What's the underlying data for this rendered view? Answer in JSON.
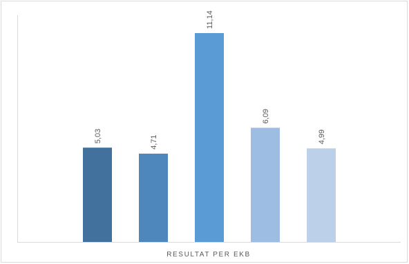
{
  "chart_data": {
    "type": "bar",
    "title": "",
    "xlabel": "RESULTAT PER EKB",
    "ylabel": "",
    "categories": [
      "",
      "",
      "",
      "",
      ""
    ],
    "values": [
      5.03,
      4.71,
      11.14,
      6.09,
      4.99
    ],
    "data_labels": [
      "5,03",
      "4,71",
      "11,14",
      "6,09",
      "4,99"
    ],
    "bar_colors": [
      "#41719c",
      "#4d87bb",
      "#5b9bd5",
      "#9dbde2",
      "#bdd0ea"
    ],
    "ylim": [
      0,
      11.14
    ],
    "grid": false,
    "legend": "none",
    "axis_color": "#d9d9d9",
    "label_color": "#595959"
  }
}
